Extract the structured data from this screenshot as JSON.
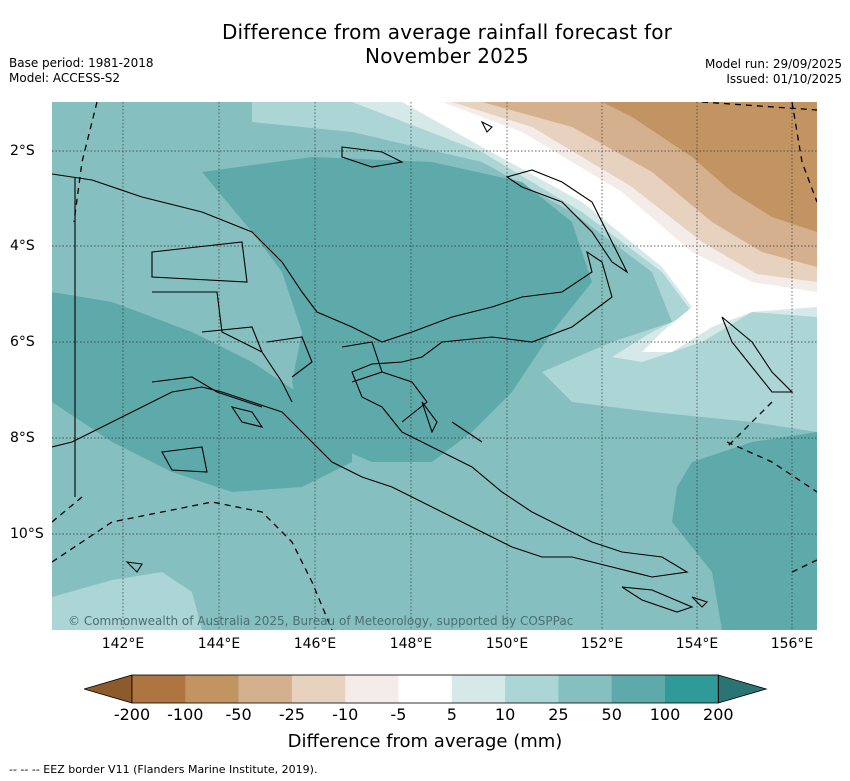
{
  "title_line1": "Difference from average rainfall forecast for",
  "title_line2": "November 2025",
  "meta_left": {
    "base_period": "Base period: 1981-2018",
    "model": "Model: ACCESS-S2"
  },
  "meta_right": {
    "model_run": "Model run: 29/09/2025",
    "issued": "Issued: 01/10/2025"
  },
  "map": {
    "lon_labels": [
      "142°E",
      "144°E",
      "146°E",
      "148°E",
      "150°E",
      "152°E",
      "154°E",
      "156°E"
    ],
    "lat_labels": [
      "2°S",
      "4°S",
      "6°S",
      "8°S",
      "10°S"
    ],
    "copyright": "© Commonwealth of Australia 2025, Bureau of Meteorology, supported by COSPPac"
  },
  "colorbar": {
    "ticks": [
      "-200",
      "-100",
      "-50",
      "-25",
      "-10",
      "-5",
      "5",
      "10",
      "25",
      "50",
      "100",
      "200"
    ],
    "colors": [
      "#8c5a2b",
      "#ad7640",
      "#c29462",
      "#d4b08f",
      "#e7d2c0",
      "#f3ece8",
      "#ffffff",
      "#d5e9e9",
      "#acd5d6",
      "#86bfbf",
      "#5eaaab",
      "#2f9a97",
      "#2a7573"
    ],
    "label": "Difference from average (mm)"
  },
  "footer": "-- -- -- EEZ border V11 (Flanders Marine Institute, 2019)."
}
